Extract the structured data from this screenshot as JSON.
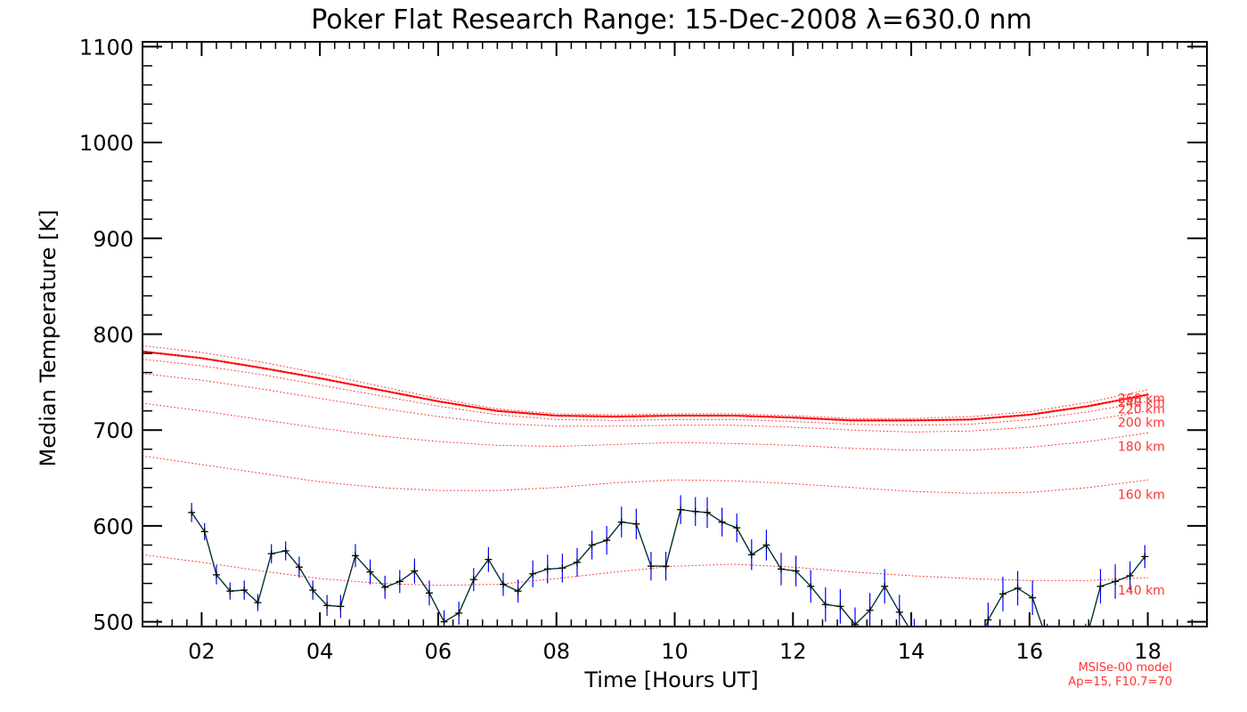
{
  "chart_data": {
    "type": "line",
    "title": "Poker Flat Research Range: 15-Dec-2008 λ=630.0 nm",
    "xlabel": "Time [Hours UT]",
    "ylabel": "Median Temperature [K]",
    "xlim": [
      1.0,
      19.0
    ],
    "ylim": [
      495,
      1105
    ],
    "x_ticks": [
      2,
      4,
      6,
      8,
      10,
      12,
      14,
      16,
      18
    ],
    "x_tick_labels": [
      "02",
      "04",
      "06",
      "08",
      "10",
      "12",
      "14",
      "16",
      "18"
    ],
    "y_ticks": [
      500,
      600,
      700,
      800,
      900,
      1000,
      1100
    ],
    "y_tick_labels": [
      "500",
      "600",
      "700",
      "800",
      "900",
      "1000",
      "1100"
    ],
    "grid": false,
    "measured": {
      "color": "#003333",
      "error_color": "#0000ff",
      "points": [
        {
          "x": 1.83,
          "y": 614,
          "err": 10
        },
        {
          "x": 2.05,
          "y": 594,
          "err": 9
        },
        {
          "x": 2.25,
          "y": 549,
          "err": 10
        },
        {
          "x": 2.48,
          "y": 532,
          "err": 9
        },
        {
          "x": 2.72,
          "y": 533,
          "err": 10
        },
        {
          "x": 2.95,
          "y": 520,
          "err": 9
        },
        {
          "x": 3.18,
          "y": 571,
          "err": 10
        },
        {
          "x": 3.42,
          "y": 574,
          "err": 10
        },
        {
          "x": 3.65,
          "y": 557,
          "err": 11
        },
        {
          "x": 3.88,
          "y": 533,
          "err": 10
        },
        {
          "x": 4.12,
          "y": 517,
          "err": 11
        },
        {
          "x": 4.35,
          "y": 516,
          "err": 12
        },
        {
          "x": 4.6,
          "y": 569,
          "err": 12
        },
        {
          "x": 4.85,
          "y": 552,
          "err": 13
        },
        {
          "x": 5.1,
          "y": 536,
          "err": 12
        },
        {
          "x": 5.35,
          "y": 542,
          "err": 12
        },
        {
          "x": 5.6,
          "y": 553,
          "err": 13
        },
        {
          "x": 5.85,
          "y": 530,
          "err": 13
        },
        {
          "x": 6.1,
          "y": 500,
          "err": 12
        },
        {
          "x": 6.35,
          "y": 509,
          "err": 12
        },
        {
          "x": 6.6,
          "y": 544,
          "err": 12
        },
        {
          "x": 6.85,
          "y": 565,
          "err": 13
        },
        {
          "x": 7.1,
          "y": 539,
          "err": 12
        },
        {
          "x": 7.35,
          "y": 532,
          "err": 12
        },
        {
          "x": 7.6,
          "y": 550,
          "err": 14
        },
        {
          "x": 7.85,
          "y": 555,
          "err": 15
        },
        {
          "x": 8.1,
          "y": 556,
          "err": 15
        },
        {
          "x": 8.35,
          "y": 562,
          "err": 15
        },
        {
          "x": 8.6,
          "y": 580,
          "err": 15
        },
        {
          "x": 8.85,
          "y": 585,
          "err": 15
        },
        {
          "x": 9.1,
          "y": 604,
          "err": 16
        },
        {
          "x": 9.35,
          "y": 602,
          "err": 16
        },
        {
          "x": 9.6,
          "y": 558,
          "err": 15
        },
        {
          "x": 9.85,
          "y": 558,
          "err": 15
        },
        {
          "x": 10.1,
          "y": 617,
          "err": 15
        },
        {
          "x": 10.35,
          "y": 615,
          "err": 15
        },
        {
          "x": 10.55,
          "y": 614,
          "err": 16
        },
        {
          "x": 10.8,
          "y": 604,
          "err": 15
        },
        {
          "x": 11.05,
          "y": 598,
          "err": 15
        },
        {
          "x": 11.3,
          "y": 570,
          "err": 16
        },
        {
          "x": 11.55,
          "y": 580,
          "err": 16
        },
        {
          "x": 11.8,
          "y": 555,
          "err": 17
        },
        {
          "x": 12.05,
          "y": 553,
          "err": 16
        },
        {
          "x": 12.3,
          "y": 537,
          "err": 17
        },
        {
          "x": 12.55,
          "y": 518,
          "err": 18
        },
        {
          "x": 12.8,
          "y": 516,
          "err": 18
        },
        {
          "x": 13.05,
          "y": 497,
          "err": 18
        },
        {
          "x": 13.3,
          "y": 512,
          "err": 18
        },
        {
          "x": 13.55,
          "y": 537,
          "err": 18
        },
        {
          "x": 13.8,
          "y": 510,
          "err": 18
        },
        {
          "x": 14.05,
          "y": 485,
          "err": 18
        },
        {
          "x": 15.3,
          "y": 502,
          "err": 18
        },
        {
          "x": 15.55,
          "y": 529,
          "err": 18
        },
        {
          "x": 15.8,
          "y": 535,
          "err": 18
        },
        {
          "x": 16.05,
          "y": 525,
          "err": 18
        },
        {
          "x": 16.3,
          "y": 480,
          "err": 18
        },
        {
          "x": 16.95,
          "y": 480,
          "err": 18
        },
        {
          "x": 17.2,
          "y": 537,
          "err": 18
        },
        {
          "x": 17.45,
          "y": 542,
          "err": 18
        },
        {
          "x": 17.7,
          "y": 548,
          "err": 15
        },
        {
          "x": 17.95,
          "y": 568,
          "err": 12
        }
      ]
    },
    "model_series": [
      {
        "name": "140 km",
        "color": "#ff3333",
        "style": "dotted",
        "weight": 1,
        "x": [
          1.0,
          2.0,
          3.0,
          4.0,
          5.0,
          6.0,
          7.0,
          8.0,
          9.0,
          10.0,
          11.0,
          12.0,
          13.0,
          14.0,
          15.0,
          16.0,
          17.0,
          18.0
        ],
        "y": [
          570,
          562,
          553,
          545,
          540,
          538,
          539,
          545,
          552,
          558,
          560,
          557,
          552,
          548,
          545,
          543,
          543,
          546
        ]
      },
      {
        "name": "160 km",
        "color": "#ff3333",
        "style": "dotted",
        "weight": 1,
        "x": [
          1.0,
          2.0,
          3.0,
          4.0,
          5.0,
          6.0,
          7.0,
          8.0,
          9.0,
          10.0,
          11.0,
          12.0,
          13.0,
          14.0,
          15.0,
          16.0,
          17.0,
          18.0
        ],
        "y": [
          673,
          664,
          655,
          646,
          640,
          637,
          637,
          640,
          645,
          648,
          647,
          644,
          640,
          636,
          634,
          635,
          640,
          648
        ]
      },
      {
        "name": "180 km",
        "color": "#ff3333",
        "style": "dotted",
        "weight": 1,
        "x": [
          1.0,
          2.0,
          3.0,
          4.0,
          5.0,
          6.0,
          7.0,
          8.0,
          9.0,
          10.0,
          11.0,
          12.0,
          13.0,
          14.0,
          15.0,
          16.0,
          17.0,
          18.0
        ],
        "y": [
          728,
          720,
          711,
          702,
          694,
          688,
          684,
          683,
          685,
          687,
          686,
          684,
          681,
          679,
          679,
          682,
          688,
          697
        ]
      },
      {
        "name": "200 km",
        "color": "#ff3333",
        "style": "dotted",
        "weight": 1,
        "x": [
          1.0,
          2.0,
          3.0,
          4.0,
          5.0,
          6.0,
          7.0,
          8.0,
          9.0,
          10.0,
          11.0,
          12.0,
          13.0,
          14.0,
          15.0,
          16.0,
          17.0,
          18.0
        ],
        "y": [
          759,
          752,
          743,
          733,
          723,
          714,
          707,
          704,
          704,
          705,
          705,
          703,
          700,
          698,
          699,
          703,
          710,
          720
        ]
      },
      {
        "name": "220 km",
        "color": "#ff3333",
        "style": "dotted",
        "weight": 1,
        "x": [
          1.0,
          2.0,
          3.0,
          4.0,
          5.0,
          6.0,
          7.0,
          8.0,
          9.0,
          10.0,
          11.0,
          12.0,
          13.0,
          14.0,
          15.0,
          16.0,
          17.0,
          18.0
        ],
        "y": [
          774,
          767,
          758,
          747,
          736,
          725,
          716,
          711,
          710,
          711,
          711,
          709,
          706,
          705,
          706,
          711,
          719,
          730
        ]
      },
      {
        "name": "240 km",
        "color": "#ff0000",
        "style": "dotted",
        "weight": 2.2,
        "x": [
          1.0,
          2.0,
          3.0,
          4.0,
          5.0,
          6.0,
          7.0,
          8.0,
          9.0,
          10.0,
          11.0,
          12.0,
          13.0,
          14.0,
          15.0,
          16.0,
          17.0,
          18.0
        ],
        "y": [
          782,
          775,
          765,
          754,
          742,
          730,
          720,
          715,
          714,
          715,
          715,
          713,
          710,
          710,
          711,
          716,
          725,
          737
        ]
      },
      {
        "name": "260 km",
        "color": "#ff3333",
        "style": "dotted",
        "weight": 1,
        "x": [
          1.0,
          2.0,
          3.0,
          4.0,
          5.0,
          6.0,
          7.0,
          8.0,
          9.0,
          10.0,
          11.0,
          12.0,
          13.0,
          14.0,
          15.0,
          16.0,
          17.0,
          18.0
        ],
        "y": [
          788,
          781,
          771,
          759,
          746,
          733,
          722,
          717,
          716,
          717,
          717,
          715,
          712,
          712,
          714,
          719,
          729,
          742
        ]
      }
    ],
    "series_labels": [
      {
        "text": "140 km",
        "value": 533
      },
      {
        "text": "160 km",
        "value": 633
      },
      {
        "text": "180 km",
        "value": 683
      },
      {
        "text": "200 km",
        "value": 708
      },
      {
        "text": "220 km",
        "value": 722
      },
      {
        "text": "240 km",
        "value": 729
      },
      {
        "text": "260 km",
        "value": 733
      }
    ],
    "annotations": [
      "MSISe-00 model",
      "Ap=15, F10.7=70"
    ]
  }
}
